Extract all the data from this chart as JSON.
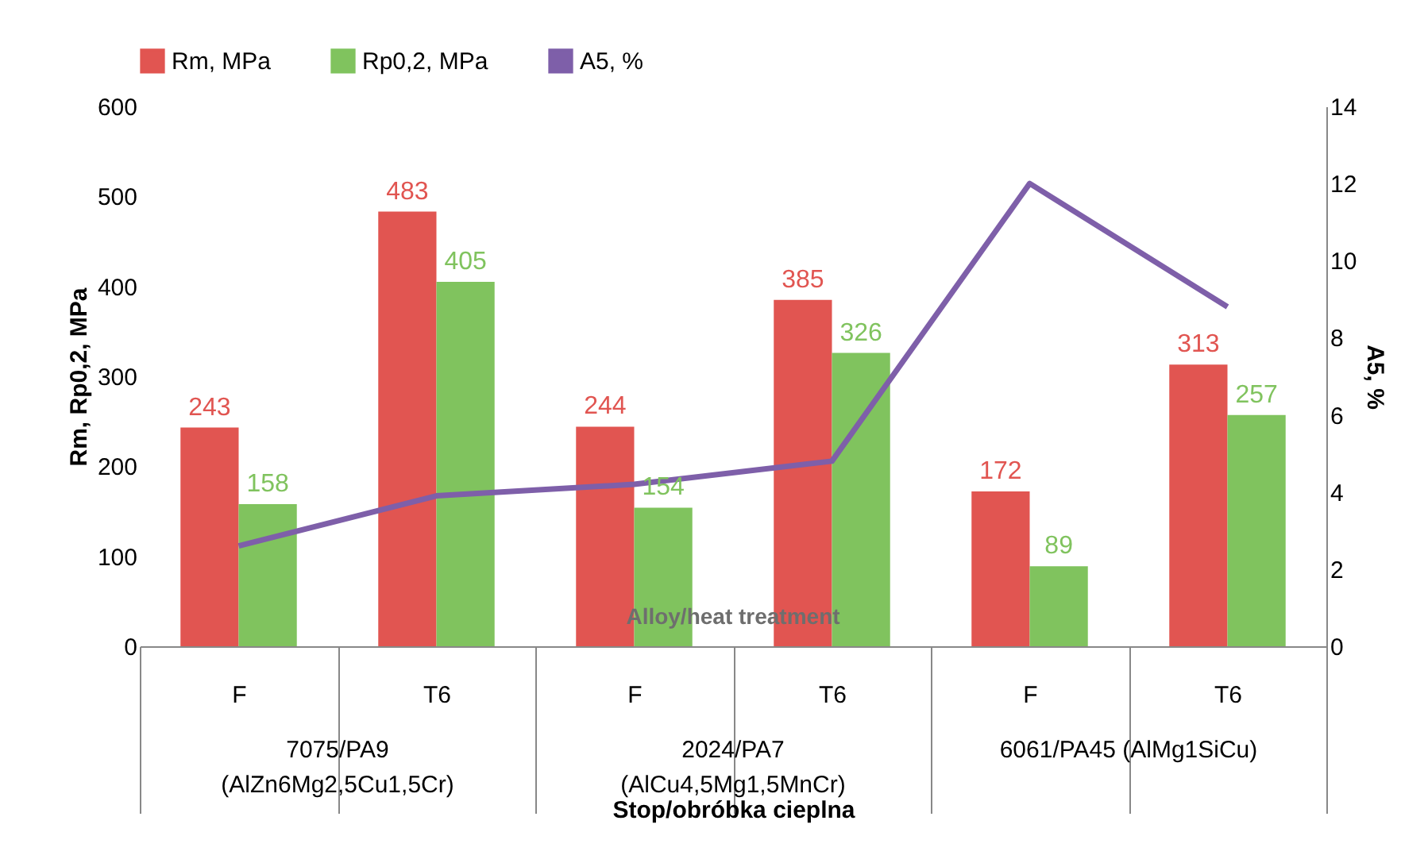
{
  "chart_data": {
    "type": "bar",
    "xlabel": "Stop/obróbka cieplna",
    "ylabel": "Rm, Rp0,2, MPa",
    "y2label": "A5, %",
    "categories": [
      "F",
      "T6",
      "F",
      "T6",
      "F",
      "T6"
    ],
    "series": [
      {
        "name": "Rm,  MPa",
        "color": "#e15551",
        "values": [
          243,
          483,
          244,
          385,
          172,
          313
        ],
        "value_labels": [
          "243",
          "483",
          "244",
          "385",
          "172",
          "313"
        ]
      },
      {
        "name": "Rp0,2,  MPa",
        "color": "#80c35e",
        "values": [
          158,
          405,
          154,
          326,
          89,
          257
        ],
        "value_labels": [
          "158",
          "405",
          "154",
          "326",
          "89",
          "257"
        ]
      },
      {
        "name": "A5,  %",
        "color": "#7e5fa9",
        "type": "line",
        "axis": "y2",
        "values": [
          2.6,
          3.9,
          4.2,
          4.8,
          12,
          8.8
        ]
      }
    ],
    "ylim": [
      0,
      600
    ],
    "yticks": [
      0,
      100,
      200,
      300,
      400,
      500,
      600
    ],
    "y2lim": [
      0,
      14
    ],
    "y2ticks": [
      0,
      2,
      4,
      6,
      8,
      10,
      12,
      14
    ],
    "legend": "top",
    "grid": false,
    "annotations": [
      "Alloy/heat treatment",
      "7075/PA9\n(AlZn6Mg2,5Cu1,5Cr)",
      "2024/PA7\n(AlCu4,5Mg1,5MnCr)",
      "6061/PA45 (AlMg1SiCu)"
    ]
  }
}
